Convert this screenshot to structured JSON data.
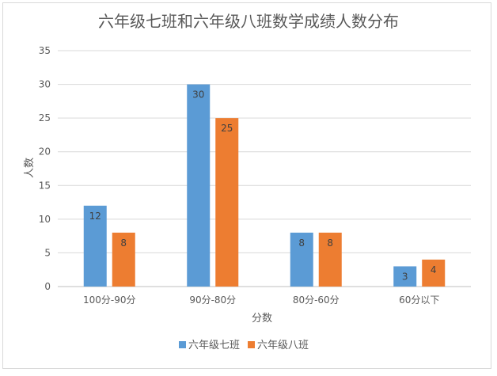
{
  "chart_data": {
    "type": "bar",
    "title": "六年级七班和六年级八班数学成绩人数分布",
    "xlabel": "分数",
    "ylabel": "人数",
    "categories": [
      "100分-90分",
      "90分-80分",
      "80分-60分",
      "60分以下"
    ],
    "series": [
      {
        "name": "六年级七班",
        "values": [
          12,
          30,
          8,
          3
        ],
        "color": "#5b9bd5"
      },
      {
        "name": "六年级八班",
        "values": [
          8,
          25,
          8,
          4
        ],
        "color": "#ed7d31"
      }
    ],
    "ylim": [
      0,
      35
    ],
    "yticks": [
      0,
      5,
      10,
      15,
      20,
      25,
      30,
      35
    ],
    "grid": true,
    "legend": "bottom",
    "data_labels": true
  }
}
